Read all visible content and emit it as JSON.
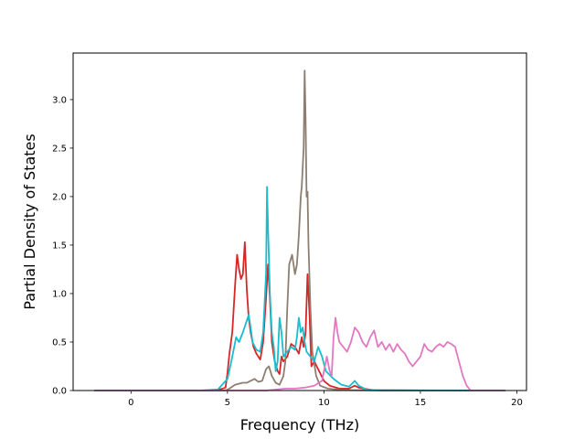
{
  "chart_data": {
    "type": "line",
    "title": "",
    "xlabel": "Frequency (THz)",
    "ylabel": "Partial Density of States",
    "xlim": [
      -3.0,
      20.5
    ],
    "ylim": [
      0.0,
      3.48
    ],
    "xticks": [
      0,
      5,
      10,
      15,
      20
    ],
    "xtick_labels": [
      "0",
      "5",
      "10",
      "15",
      "20"
    ],
    "yticks": [
      0.0,
      0.5,
      1.0,
      1.5,
      2.0,
      2.5,
      3.0
    ],
    "ytick_labels": [
      "0.0",
      "0.5",
      "1.0",
      "1.5",
      "2.0",
      "2.5",
      "3.0"
    ],
    "grid": false,
    "legend": "none",
    "series": [
      {
        "color": "#d62728",
        "points": [
          [
            -1.9,
            0
          ],
          [
            3.5,
            0
          ],
          [
            4.5,
            0.005
          ],
          [
            4.9,
            0.03
          ],
          [
            5.0,
            0.18
          ],
          [
            5.1,
            0.38
          ],
          [
            5.25,
            0.6
          ],
          [
            5.4,
            1.1
          ],
          [
            5.5,
            1.4
          ],
          [
            5.6,
            1.25
          ],
          [
            5.7,
            1.15
          ],
          [
            5.8,
            1.2
          ],
          [
            5.9,
            1.53
          ],
          [
            6.0,
            1.05
          ],
          [
            6.1,
            0.75
          ],
          [
            6.2,
            0.6
          ],
          [
            6.35,
            0.45
          ],
          [
            6.5,
            0.38
          ],
          [
            6.7,
            0.32
          ],
          [
            6.85,
            0.5
          ],
          [
            7.0,
            0.95
          ],
          [
            7.1,
            1.3
          ],
          [
            7.2,
            0.95
          ],
          [
            7.3,
            0.5
          ],
          [
            7.45,
            0.3
          ],
          [
            7.6,
            0.2
          ],
          [
            7.7,
            0.17
          ],
          [
            7.8,
            0.35
          ],
          [
            7.9,
            0.3
          ],
          [
            8.1,
            0.35
          ],
          [
            8.3,
            0.48
          ],
          [
            8.5,
            0.45
          ],
          [
            8.7,
            0.38
          ],
          [
            8.85,
            0.55
          ],
          [
            8.95,
            0.45
          ],
          [
            9.05,
            0.6
          ],
          [
            9.15,
            1.2
          ],
          [
            9.25,
            0.8
          ],
          [
            9.35,
            0.25
          ],
          [
            9.5,
            0.3
          ],
          [
            9.8,
            0.18
          ],
          [
            10.0,
            0.1
          ],
          [
            10.3,
            0.05
          ],
          [
            10.8,
            0.02
          ],
          [
            11.3,
            0.02
          ],
          [
            11.6,
            0.05
          ],
          [
            11.8,
            0.03
          ],
          [
            12.5,
            0.005
          ],
          [
            17.0,
            0
          ],
          [
            19.4,
            0
          ]
        ]
      },
      {
        "color": "#8c7f72",
        "points": [
          [
            -1.9,
            0
          ],
          [
            4.9,
            0
          ],
          [
            5.1,
            0.02
          ],
          [
            5.4,
            0.06
          ],
          [
            5.8,
            0.08
          ],
          [
            6.0,
            0.08
          ],
          [
            6.2,
            0.1
          ],
          [
            6.4,
            0.12
          ],
          [
            6.6,
            0.09
          ],
          [
            6.8,
            0.1
          ],
          [
            7.0,
            0.22
          ],
          [
            7.15,
            0.25
          ],
          [
            7.3,
            0.15
          ],
          [
            7.5,
            0.08
          ],
          [
            7.7,
            0.06
          ],
          [
            7.9,
            0.15
          ],
          [
            8.0,
            0.3
          ],
          [
            8.1,
            0.85
          ],
          [
            8.2,
            1.3
          ],
          [
            8.35,
            1.4
          ],
          [
            8.5,
            1.2
          ],
          [
            8.6,
            1.3
          ],
          [
            8.7,
            1.6
          ],
          [
            8.8,
            2.0
          ],
          [
            8.85,
            2.1
          ],
          [
            8.95,
            2.5
          ],
          [
            9.0,
            3.3
          ],
          [
            9.05,
            2.8
          ],
          [
            9.1,
            2.0
          ],
          [
            9.15,
            2.05
          ],
          [
            9.2,
            1.5
          ],
          [
            9.3,
            0.85
          ],
          [
            9.4,
            0.4
          ],
          [
            9.6,
            0.15
          ],
          [
            9.8,
            0.05
          ],
          [
            10.2,
            0.02
          ],
          [
            11.0,
            0.005
          ],
          [
            13.0,
            0
          ],
          [
            19.4,
            0
          ]
        ]
      },
      {
        "color": "#17becf",
        "points": [
          [
            -1.9,
            0
          ],
          [
            3.5,
            0
          ],
          [
            4.5,
            0.01
          ],
          [
            5.0,
            0.12
          ],
          [
            5.2,
            0.3
          ],
          [
            5.3,
            0.4
          ],
          [
            5.45,
            0.55
          ],
          [
            5.6,
            0.5
          ],
          [
            5.8,
            0.6
          ],
          [
            6.0,
            0.72
          ],
          [
            6.1,
            0.78
          ],
          [
            6.2,
            0.65
          ],
          [
            6.3,
            0.5
          ],
          [
            6.5,
            0.42
          ],
          [
            6.7,
            0.4
          ],
          [
            6.85,
            0.6
          ],
          [
            7.0,
            1.2
          ],
          [
            7.05,
            2.1
          ],
          [
            7.1,
            1.7
          ],
          [
            7.2,
            1.0
          ],
          [
            7.3,
            0.6
          ],
          [
            7.4,
            0.45
          ],
          [
            7.5,
            0.2
          ],
          [
            7.6,
            0.3
          ],
          [
            7.7,
            0.75
          ],
          [
            7.8,
            0.6
          ],
          [
            7.9,
            0.35
          ],
          [
            8.1,
            0.4
          ],
          [
            8.3,
            0.45
          ],
          [
            8.5,
            0.42
          ],
          [
            8.6,
            0.55
          ],
          [
            8.7,
            0.75
          ],
          [
            8.8,
            0.6
          ],
          [
            8.9,
            0.65
          ],
          [
            9.0,
            0.5
          ],
          [
            9.1,
            0.4
          ],
          [
            9.3,
            0.35
          ],
          [
            9.5,
            0.3
          ],
          [
            9.7,
            0.45
          ],
          [
            9.9,
            0.35
          ],
          [
            10.1,
            0.2
          ],
          [
            10.5,
            0.12
          ],
          [
            10.9,
            0.06
          ],
          [
            11.3,
            0.04
          ],
          [
            11.6,
            0.1
          ],
          [
            11.8,
            0.05
          ],
          [
            12.2,
            0.01
          ],
          [
            13.0,
            0
          ],
          [
            19.4,
            0
          ]
        ]
      },
      {
        "color": "#e377c2",
        "points": [
          [
            -1.9,
            0
          ],
          [
            7.0,
            0
          ],
          [
            8.0,
            0.02
          ],
          [
            8.5,
            0.02
          ],
          [
            9.0,
            0.03
          ],
          [
            9.5,
            0.05
          ],
          [
            9.9,
            0.1
          ],
          [
            10.0,
            0.2
          ],
          [
            10.15,
            0.35
          ],
          [
            10.3,
            0.2
          ],
          [
            10.4,
            0.15
          ],
          [
            10.5,
            0.55
          ],
          [
            10.6,
            0.75
          ],
          [
            10.7,
            0.6
          ],
          [
            10.8,
            0.5
          ],
          [
            11.0,
            0.45
          ],
          [
            11.2,
            0.4
          ],
          [
            11.4,
            0.5
          ],
          [
            11.6,
            0.65
          ],
          [
            11.8,
            0.6
          ],
          [
            12.0,
            0.5
          ],
          [
            12.2,
            0.45
          ],
          [
            12.4,
            0.55
          ],
          [
            12.6,
            0.62
          ],
          [
            12.8,
            0.45
          ],
          [
            13.0,
            0.5
          ],
          [
            13.2,
            0.42
          ],
          [
            13.4,
            0.48
          ],
          [
            13.6,
            0.4
          ],
          [
            13.8,
            0.48
          ],
          [
            14.0,
            0.42
          ],
          [
            14.2,
            0.38
          ],
          [
            14.4,
            0.3
          ],
          [
            14.6,
            0.25
          ],
          [
            14.8,
            0.3
          ],
          [
            15.0,
            0.35
          ],
          [
            15.2,
            0.48
          ],
          [
            15.4,
            0.42
          ],
          [
            15.6,
            0.4
          ],
          [
            15.8,
            0.45
          ],
          [
            16.0,
            0.48
          ],
          [
            16.2,
            0.45
          ],
          [
            16.4,
            0.5
          ],
          [
            16.6,
            0.48
          ],
          [
            16.8,
            0.45
          ],
          [
            17.0,
            0.3
          ],
          [
            17.2,
            0.15
          ],
          [
            17.4,
            0.05
          ],
          [
            17.6,
            0
          ],
          [
            19.4,
            0
          ]
        ]
      }
    ]
  }
}
